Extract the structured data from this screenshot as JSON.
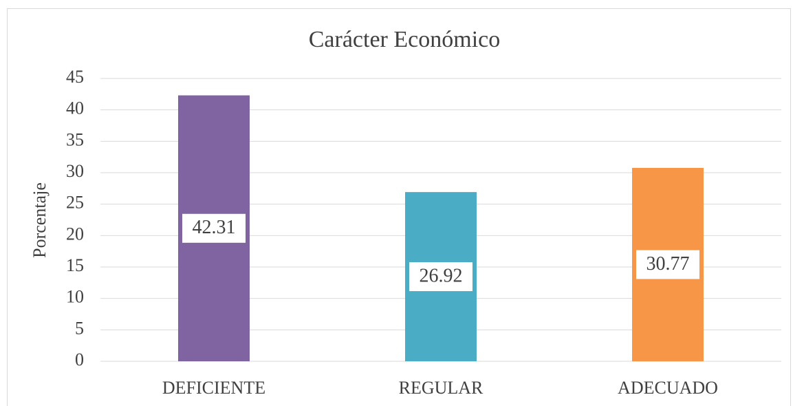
{
  "chart_data": {
    "type": "bar",
    "title": "Carácter Económico",
    "y_label": "Porcentaje",
    "categories": [
      "DEFICIENTE",
      "REGULAR",
      "ADECUADO"
    ],
    "values": [
      42.31,
      26.92,
      30.77
    ],
    "colors": [
      "#8064a2",
      "#4bacc6",
      "#f79646"
    ],
    "ylim": [
      0,
      45
    ],
    "yticks": [
      0,
      5,
      10,
      15,
      20,
      25,
      30,
      35,
      40,
      45
    ],
    "grid": true,
    "data_labels": true
  }
}
